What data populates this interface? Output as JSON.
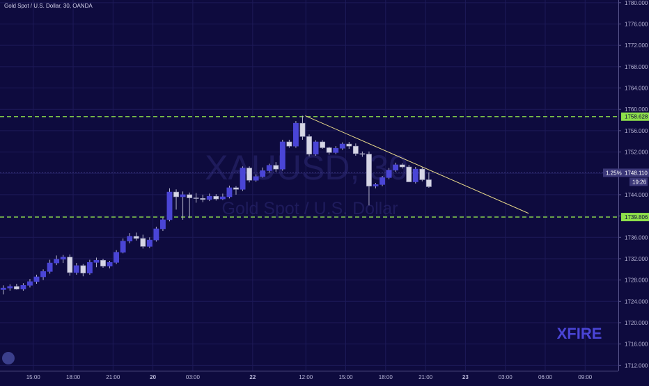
{
  "chart_data": {
    "type": "candlestick",
    "title": "Gold Spot / U.S. Dollar, 30, OANDA",
    "watermark": {
      "symbol": "XAUUSD, 30",
      "description": "Gold Spot / U.S. Dollar"
    },
    "brand_mark": "XFIRE",
    "ylim": [
      1711,
      1780.5
    ],
    "y_ticks": [
      "1712.000",
      "1716.000",
      "1720.000",
      "1724.000",
      "1728.000",
      "1732.000",
      "1736.000",
      "1740.000",
      "1744.000",
      "1748.000",
      "1752.000",
      "1756.000",
      "1760.000",
      "1764.000",
      "1768.000",
      "1772.000",
      "1776.000",
      "1780.000"
    ],
    "y_tick_values": [
      1712,
      1716,
      1720,
      1724,
      1728,
      1732,
      1736,
      1740,
      1744,
      1748,
      1752,
      1756,
      1760,
      1764,
      1768,
      1772,
      1776,
      1780
    ],
    "x_ticks": [
      {
        "label": "15:00",
        "bar": 4.5
      },
      {
        "label": "18:00",
        "bar": 10.5
      },
      {
        "label": "21:00",
        "bar": 16.5
      },
      {
        "label": "20",
        "bar": 22.5
      },
      {
        "label": "03:00",
        "bar": 28.5
      },
      {
        "label": "22",
        "bar": 37.5
      },
      {
        "label": "12:00",
        "bar": 45.5
      },
      {
        "label": "15:00",
        "bar": 51.5
      },
      {
        "label": "18:00",
        "bar": 57.5
      },
      {
        "label": "21:00",
        "bar": 63.5
      },
      {
        "label": "23",
        "bar": 69.5
      },
      {
        "label": "03:00",
        "bar": 75.5
      },
      {
        "label": "06:00",
        "bar": 81.5
      },
      {
        "label": "09:00",
        "bar": 87.5
      }
    ],
    "x_tick_bold": [
      "20",
      "22",
      "23"
    ],
    "bar_count_visible": 93,
    "candles": [
      [
        1726.2,
        1727.0,
        1725.3,
        1726.5
      ],
      [
        1726.5,
        1727.2,
        1726.0,
        1726.8
      ],
      [
        1726.8,
        1727.3,
        1726.2,
        1726.3
      ],
      [
        1726.3,
        1727.4,
        1726.0,
        1727.0
      ],
      [
        1727.0,
        1728.2,
        1726.6,
        1727.7
      ],
      [
        1727.7,
        1729.0,
        1727.3,
        1728.6
      ],
      [
        1728.6,
        1730.0,
        1728.0,
        1729.6
      ],
      [
        1729.6,
        1731.8,
        1729.2,
        1731.2
      ],
      [
        1731.2,
        1732.6,
        1730.8,
        1731.9
      ],
      [
        1731.9,
        1732.7,
        1731.2,
        1732.3
      ],
      [
        1732.3,
        1732.8,
        1728.8,
        1729.4
      ],
      [
        1729.4,
        1731.2,
        1729.0,
        1730.7
      ],
      [
        1730.7,
        1731.0,
        1728.7,
        1729.3
      ],
      [
        1729.3,
        1731.8,
        1729.0,
        1731.3
      ],
      [
        1731.3,
        1732.2,
        1730.4,
        1731.7
      ],
      [
        1731.7,
        1732.0,
        1730.3,
        1730.6
      ],
      [
        1730.6,
        1731.6,
        1730.2,
        1731.3
      ],
      [
        1731.3,
        1733.6,
        1731.0,
        1733.2
      ],
      [
        1733.2,
        1735.8,
        1733.0,
        1735.3
      ],
      [
        1735.3,
        1736.8,
        1734.9,
        1736.2
      ],
      [
        1736.2,
        1736.9,
        1735.4,
        1735.8
      ],
      [
        1735.8,
        1736.5,
        1733.9,
        1734.3
      ],
      [
        1734.3,
        1736.0,
        1734.0,
        1735.5
      ],
      [
        1735.5,
        1738.0,
        1735.2,
        1737.6
      ],
      [
        1737.6,
        1739.7,
        1737.2,
        1739.3
      ],
      [
        1739.3,
        1745.2,
        1739.0,
        1744.5
      ],
      [
        1744.5,
        1745.0,
        1741.2,
        1743.6
      ],
      [
        1743.6,
        1744.6,
        1739.3,
        1744.0
      ],
      [
        1744.0,
        1744.4,
        1739.6,
        1743.4
      ],
      [
        1743.4,
        1744.3,
        1742.5,
        1743.3
      ],
      [
        1743.3,
        1744.0,
        1742.6,
        1743.1
      ],
      [
        1743.1,
        1744.2,
        1742.8,
        1743.7
      ],
      [
        1743.7,
        1744.1,
        1742.9,
        1743.2
      ],
      [
        1743.2,
        1744.2,
        1743.0,
        1743.6
      ],
      [
        1743.6,
        1745.7,
        1743.3,
        1745.3
      ],
      [
        1745.3,
        1745.6,
        1744.0,
        1745.0
      ],
      [
        1745.0,
        1749.3,
        1744.7,
        1749.0
      ],
      [
        1749.0,
        1749.3,
        1746.3,
        1746.7
      ],
      [
        1746.7,
        1747.8,
        1746.4,
        1747.4
      ],
      [
        1747.4,
        1749.1,
        1747.2,
        1748.5
      ],
      [
        1748.5,
        1749.8,
        1748.1,
        1749.5
      ],
      [
        1749.5,
        1750.1,
        1748.3,
        1748.8
      ],
      [
        1748.8,
        1754.3,
        1748.5,
        1753.9
      ],
      [
        1753.9,
        1754.3,
        1752.8,
        1753.1
      ],
      [
        1753.1,
        1757.8,
        1752.8,
        1757.4
      ],
      [
        1757.4,
        1758.8,
        1754.3,
        1754.9
      ],
      [
        1754.9,
        1755.3,
        1751.2,
        1751.6
      ],
      [
        1751.6,
        1754.2,
        1751.3,
        1753.9
      ],
      [
        1753.9,
        1754.2,
        1752.6,
        1752.8
      ],
      [
        1752.8,
        1753.0,
        1751.5,
        1751.9
      ],
      [
        1751.9,
        1753.1,
        1751.6,
        1752.7
      ],
      [
        1752.7,
        1753.8,
        1752.4,
        1753.5
      ],
      [
        1753.5,
        1753.9,
        1752.6,
        1753.1
      ],
      [
        1753.1,
        1753.6,
        1751.3,
        1751.7
      ],
      [
        1751.7,
        1752.1,
        1751.1,
        1751.6
      ],
      [
        1751.6,
        1752.1,
        1742.0,
        1745.6
      ],
      [
        1745.6,
        1746.2,
        1745.2,
        1745.9
      ],
      [
        1745.9,
        1747.5,
        1745.6,
        1747.2
      ],
      [
        1747.2,
        1749.0,
        1746.9,
        1748.6
      ],
      [
        1748.6,
        1750.0,
        1748.3,
        1749.6
      ],
      [
        1749.6,
        1749.9,
        1748.9,
        1749.2
      ],
      [
        1749.2,
        1749.6,
        1746.8,
        1746.4
      ],
      [
        1746.4,
        1749.2,
        1746.1,
        1748.8
      ],
      [
        1748.8,
        1749.1,
        1746.5,
        1746.8
      ],
      [
        1746.8,
        1748.2,
        1745.3,
        1745.5
      ]
    ],
    "horizontal_levels": [
      {
        "value": 1758.628,
        "label": "1758.628"
      },
      {
        "value": 1739.806,
        "label": "1739.806"
      }
    ],
    "current_price": {
      "value": 1748.11,
      "label": "1748.110",
      "change": "1.25%",
      "countdown": "19:26"
    },
    "trendline": {
      "start": {
        "bar": 45.4,
        "price": 1758.8
      },
      "end": {
        "bar": 79,
        "price": 1740.5
      }
    },
    "grid": true,
    "colors": {
      "background": "#0e0b3e",
      "up": "#4a45d6",
      "down": "#d6d6e6",
      "wick": "#b5b5cc",
      "level": "#8ee04a",
      "trendline": "#e8d98a",
      "axis_text": "#b9b7d8",
      "price_tag": "#3b3778"
    }
  }
}
